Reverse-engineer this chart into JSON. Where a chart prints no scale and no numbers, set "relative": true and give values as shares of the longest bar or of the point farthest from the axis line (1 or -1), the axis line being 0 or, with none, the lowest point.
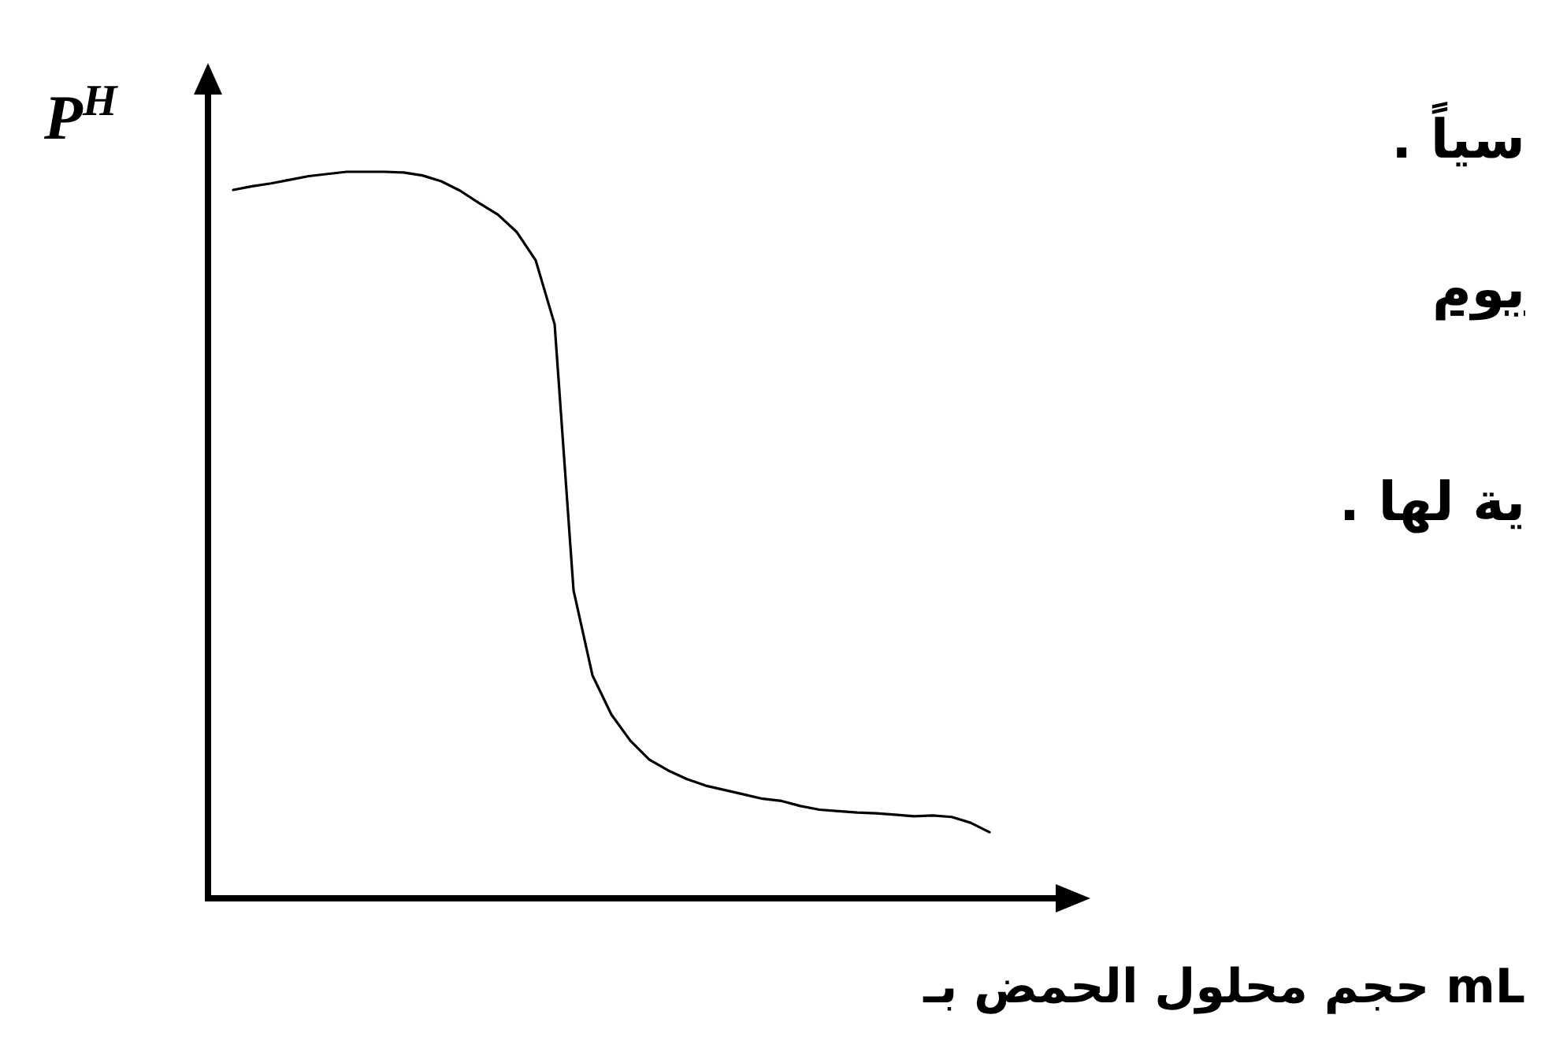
{
  "chart_data": {
    "type": "line",
    "relative": true,
    "ylabel": "P$^{H}$",
    "xlabel": "حجم محلول الحمض بـ mL",
    "annotations": [
      "سياً .",
      "بوم",
      "ية لها ."
    ],
    "categories": [
      null,
      null,
      null,
      null,
      null,
      null,
      null,
      null,
      null,
      null,
      null,
      null,
      null,
      null,
      null,
      null,
      null,
      null,
      null,
      null,
      null,
      null,
      null,
      null,
      null,
      null,
      null,
      null,
      null,
      null,
      null,
      null,
      null,
      null,
      null,
      null,
      null,
      null,
      null,
      null,
      null
    ],
    "series": [
      {
        "color": "#000000",
        "values": [
          0.975,
          0.98,
          0.984,
          0.989,
          0.994,
          0.997,
          1,
          1,
          1,
          0.999,
          0.995,
          0.987,
          0.974,
          0.957,
          0.941,
          0.917,
          0.878,
          0.79,
          0.424,
          0.307,
          0.253,
          0.217,
          0.191,
          0.176,
          0.164,
          0.155,
          0.149,
          0.143,
          0.137,
          0.134,
          0.127,
          0.122,
          0.12,
          0.118,
          0.117,
          0.115,
          0.113,
          0.114,
          0.112,
          0.104,
          0.091
        ]
      }
    ]
  }
}
